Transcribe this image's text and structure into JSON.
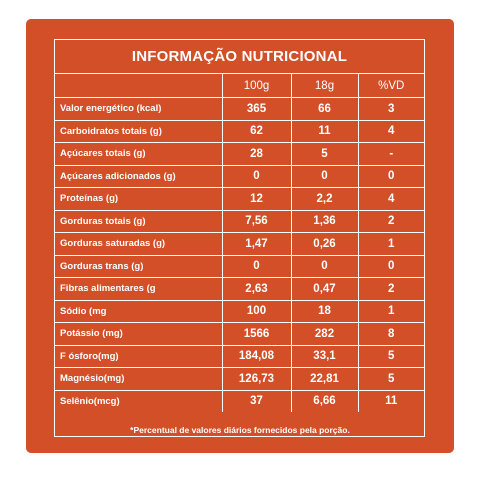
{
  "panel": {
    "title": "INFORMAÇÃO NUTRICIONAL",
    "background_color": "#d24f28",
    "text_color": "#ffffff",
    "footnote": "*Percentual de valores diários fornecidos pela porção."
  },
  "table": {
    "headers": [
      "",
      "100g",
      "18g",
      "%VD"
    ],
    "rows": [
      {
        "name": "Valor energético (kcal)",
        "per_100g": "365",
        "per_18g": "66",
        "vd": "3"
      },
      {
        "name": "Carboidratos totais (g)",
        "per_100g": "62",
        "per_18g": "11",
        "vd": "4"
      },
      {
        "name": "Açúcares totais (g)",
        "per_100g": "28",
        "per_18g": "5",
        "vd": "-"
      },
      {
        "name": "Açúcares adicionados (g)",
        "per_100g": "0",
        "per_18g": "0",
        "vd": "0"
      },
      {
        "name": "Proteínas (g)",
        "per_100g": "12",
        "per_18g": "2,2",
        "vd": "4"
      },
      {
        "name": "Gorduras totais (g)",
        "per_100g": "7,56",
        "per_18g": "1,36",
        "vd": "2"
      },
      {
        "name": "Gorduras saturadas (g)",
        "per_100g": "1,47",
        "per_18g": "0,26",
        "vd": "1"
      },
      {
        "name": "Gorduras trans (g)",
        "per_100g": "0",
        "per_18g": "0",
        "vd": "0"
      },
      {
        "name": "Fibras alimentares (g",
        "per_100g": "2,63",
        "per_18g": "0,47",
        "vd": "2"
      },
      {
        "name": "Sódio (mg",
        "per_100g": "100",
        "per_18g": "18",
        "vd": "1"
      },
      {
        "name": "Potássio (mg)",
        "per_100g": "1566",
        "per_18g": "282",
        "vd": "8"
      },
      {
        "name": "F ósforo(mg)",
        "per_100g": "184,08",
        "per_18g": "33,1",
        "vd": "5"
      },
      {
        "name": "Magnésio(mg)",
        "per_100g": "126,73",
        "per_18g": "22,81",
        "vd": "5"
      },
      {
        "name": "Selênio(mcg)",
        "per_100g": "37",
        "per_18g": "6,66",
        "vd": "11"
      }
    ]
  }
}
